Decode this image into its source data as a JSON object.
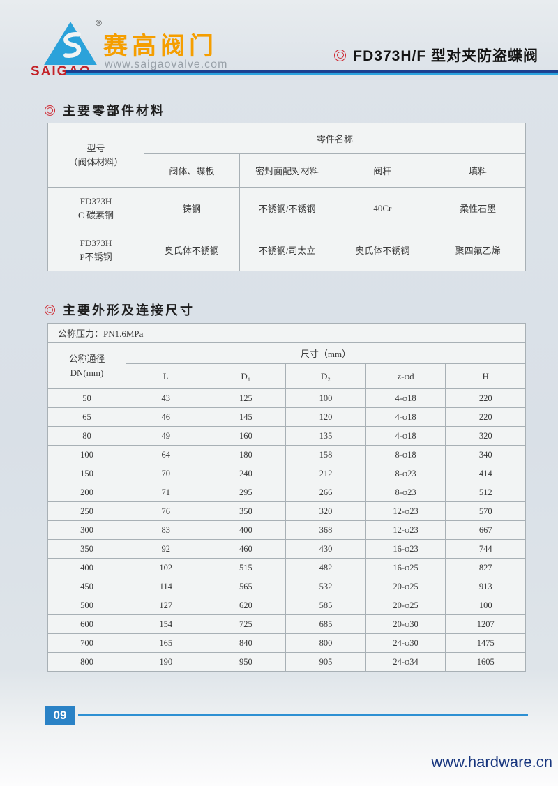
{
  "header": {
    "brand_cn": "赛高阀门",
    "brand_en": "SAIGAO",
    "brand_url": "www.saigaovalve.com",
    "reg_mark": "®",
    "page_title": "FD373H/F 型对夹防盗蝶阀"
  },
  "section_materials": {
    "title": "主要零部件材料",
    "table": {
      "col0_line1": "型号",
      "col0_line2": "（阀体材料）",
      "group_header": "零件名称",
      "columns": [
        "阀体、蝶板",
        "密封面配对材料",
        "阀杆",
        "填料"
      ],
      "rows": [
        {
          "model": [
            "FD373H",
            "C 碳素钢"
          ],
          "cells": [
            "铸钢",
            "不锈钢/不锈钢",
            "40Cr",
            "柔性石墨"
          ]
        },
        {
          "model": [
            "FD373H",
            "P不锈钢"
          ],
          "cells": [
            "奥氏体不锈钢",
            "不锈钢/司太立",
            "奥氏体不锈钢",
            "聚四氟乙烯"
          ]
        }
      ]
    }
  },
  "section_dimensions": {
    "title": "主要外形及连接尺寸",
    "pressure_label": "公称压力：PN1.6MPa",
    "table": {
      "col0_line1": "公称通径",
      "col0_line2": "DN(mm)",
      "group_header": "尺寸（mm）",
      "columns": [
        "L",
        "D₁",
        "D₂",
        "z-φd",
        "H"
      ],
      "rows": [
        [
          "50",
          "43",
          "125",
          "100",
          "4-φ18",
          "220"
        ],
        [
          "65",
          "46",
          "145",
          "120",
          "4-φ18",
          "220"
        ],
        [
          "80",
          "49",
          "160",
          "135",
          "4-φ18",
          "320"
        ],
        [
          "100",
          "64",
          "180",
          "158",
          "8-φ18",
          "340"
        ],
        [
          "150",
          "70",
          "240",
          "212",
          "8-φ23",
          "414"
        ],
        [
          "200",
          "71",
          "295",
          "266",
          "8-φ23",
          "512"
        ],
        [
          "250",
          "76",
          "350",
          "320",
          "12-φ23",
          "570"
        ],
        [
          "300",
          "83",
          "400",
          "368",
          "12-φ23",
          "667"
        ],
        [
          "350",
          "92",
          "460",
          "430",
          "16-φ23",
          "744"
        ],
        [
          "400",
          "102",
          "515",
          "482",
          "16-φ25",
          "827"
        ],
        [
          "450",
          "114",
          "565",
          "532",
          "20-φ25",
          "913"
        ],
        [
          "500",
          "127",
          "620",
          "585",
          "20-φ25",
          "100"
        ],
        [
          "600",
          "154",
          "725",
          "685",
          "20-φ30",
          "1207"
        ],
        [
          "700",
          "165",
          "840",
          "800",
          "24-φ30",
          "1475"
        ],
        [
          "800",
          "190",
          "950",
          "905",
          "24-φ34",
          "1605"
        ]
      ]
    }
  },
  "footer": {
    "page_number": "09",
    "website": "www.hardware.cn"
  },
  "colors": {
    "brand_orange": "#f59e00",
    "brand_red": "#c32127",
    "logo_blue": "#2ba2da",
    "marker_red": "#cf2630",
    "header_line_navy": "#1b3f8f",
    "header_line_blue": "#2aa2de",
    "footer_blue": "#2a82c6",
    "url_navy": "#17357e"
  }
}
